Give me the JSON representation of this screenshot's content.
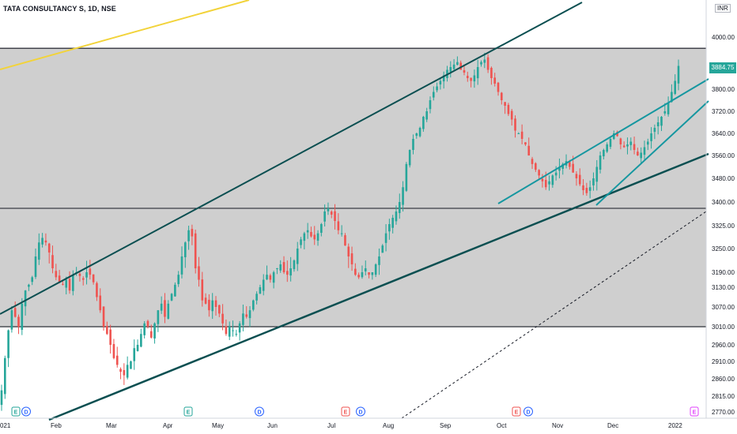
{
  "header": {
    "symbol_title": "TATA CONSULTANCY S, 1D, NSE",
    "currency_badge": "INR",
    "last_price": "3884.75"
  },
  "colors": {
    "up": "#26a69a",
    "down": "#ef5350",
    "channel": "#0b4f51",
    "trend": "#1597a0",
    "yellow": "#f2d33a",
    "zone": "#cfcfcf"
  },
  "chart_data": {
    "type": "candlestick",
    "y_tick_labels": [
      "4000.00",
      "3880.00",
      "3800.00",
      "3720.00",
      "3640.00",
      "3560.00",
      "3480.00",
      "3400.00",
      "3325.00",
      "3250.00",
      "3190.00",
      "3130.00",
      "3070.00",
      "3010.00",
      "2960.00",
      "2910.00",
      "2860.00",
      "2815.00",
      "2770.00"
    ],
    "y_tick_values": [
      4000,
      3880,
      3800,
      3720,
      3640,
      3560,
      3480,
      3400,
      3325,
      3250,
      3190,
      3130,
      3070,
      3010,
      2960,
      2910,
      2860,
      2815,
      2770
    ],
    "x_labels": [
      "021",
      "Feb",
      "Mar",
      "Apr",
      "May",
      "Jun",
      "Jul",
      "Aug",
      "Sep",
      "Oct",
      "Nov",
      "Dec",
      "2022"
    ],
    "event_markers": [
      {
        "label": "E",
        "kind": "earnings",
        "color": "#26a69a"
      },
      {
        "label": "D",
        "kind": "dividend",
        "color": "#2962ff"
      },
      {
        "label": "E",
        "kind": "earnings",
        "color": "#26a69a"
      },
      {
        "label": "D",
        "kind": "dividend",
        "color": "#2962ff"
      },
      {
        "label": "E",
        "kind": "earnings",
        "color": "#ef5350"
      },
      {
        "label": "D",
        "kind": "dividend",
        "color": "#2962ff"
      },
      {
        "label": "E",
        "kind": "earnings",
        "color": "#ef5350"
      },
      {
        "label": "D",
        "kind": "dividend",
        "color": "#2962ff"
      },
      {
        "label": "E",
        "kind": "earnings",
        "color": "#e040fb"
      }
    ],
    "horizontal_levels": [
      3010,
      3380,
      3955
    ],
    "close_series": [
      2830,
      2920,
      3000,
      3060,
      3040,
      3010,
      3080,
      3120,
      3140,
      3170,
      3230,
      3270,
      3285,
      3270,
      3240,
      3200,
      3170,
      3150,
      3140,
      3160,
      3120,
      3180,
      3190,
      3175,
      3160,
      3190,
      3180,
      3150,
      3100,
      3060,
      3010,
      2990,
      2960,
      2920,
      2900,
      2880,
      2870,
      2900,
      2910,
      2950,
      2960,
      2990,
      3020,
      3010,
      2980,
      3020,
      3060,
      3080,
      3040,
      3080,
      3110,
      3140,
      3180,
      3230,
      3270,
      3310,
      3290,
      3200,
      3160,
      3090,
      3080,
      3060,
      3090,
      3070,
      3050,
      3020,
      2990,
      3010,
      3000,
      2990,
      3020,
      3050,
      3040,
      3060,
      3090,
      3110,
      3130,
      3160,
      3180,
      3160,
      3190,
      3200,
      3210,
      3190,
      3180,
      3200,
      3220,
      3250,
      3280,
      3300,
      3310,
      3290,
      3280,
      3300,
      3330,
      3370,
      3380,
      3360,
      3340,
      3310,
      3300,
      3260,
      3230,
      3210,
      3180,
      3170,
      3190,
      3200,
      3180,
      3190,
      3210,
      3230,
      3260,
      3300,
      3330,
      3350,
      3370,
      3400,
      3450,
      3530,
      3580,
      3620,
      3640,
      3660,
      3700,
      3720,
      3760,
      3790,
      3810,
      3830,
      3850,
      3870,
      3880,
      3890,
      3900,
      3870,
      3860,
      3840,
      3830,
      3850,
      3880,
      3900,
      3910,
      3870,
      3840,
      3820,
      3790,
      3760,
      3740,
      3710,
      3690,
      3650,
      3640,
      3620,
      3600,
      3560,
      3530,
      3510,
      3490,
      3470,
      3450,
      3470,
      3490,
      3500,
      3520,
      3530,
      3540,
      3520,
      3500,
      3480,
      3460,
      3440,
      3430,
      3450,
      3480,
      3520,
      3560,
      3580,
      3600,
      3620,
      3640,
      3630,
      3600,
      3590,
      3600,
      3610,
      3580,
      3560,
      3570,
      3590,
      3610,
      3640,
      3660,
      3680,
      3700,
      3720,
      3750,
      3790,
      3830,
      3884.75
    ],
    "ylim": [
      2745,
      4100
    ]
  }
}
